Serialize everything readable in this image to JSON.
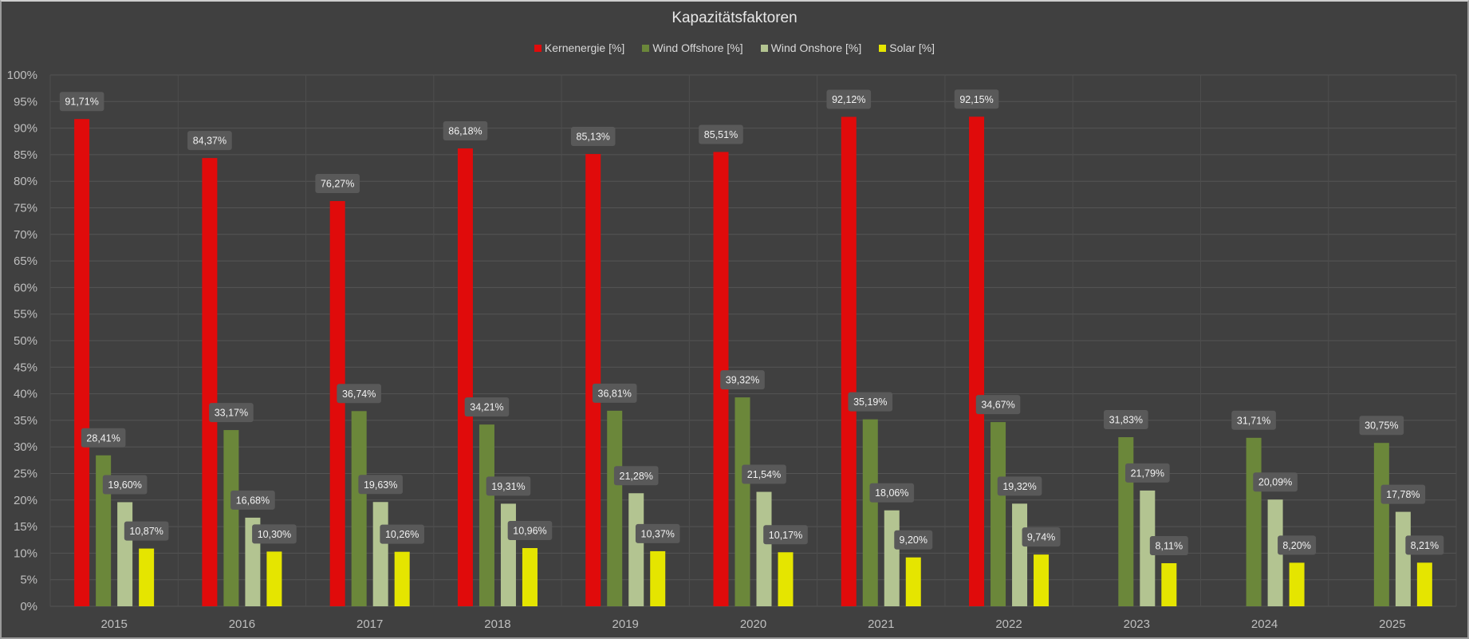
{
  "chart_data": {
    "type": "bar",
    "title": "Kapazitätsfaktoren",
    "xlabel": "",
    "ylabel": "",
    "ylim": [
      0,
      100
    ],
    "ytick_step": 5,
    "yticks": [
      "0%",
      "5%",
      "10%",
      "15%",
      "20%",
      "25%",
      "30%",
      "35%",
      "40%",
      "45%",
      "50%",
      "55%",
      "60%",
      "65%",
      "70%",
      "75%",
      "80%",
      "85%",
      "90%",
      "95%",
      "100%"
    ],
    "grid": true,
    "legend_position": "top",
    "categories": [
      "2015",
      "2016",
      "2017",
      "2018",
      "2019",
      "2020",
      "2021",
      "2022",
      "2023",
      "2024",
      "2025"
    ],
    "series": [
      {
        "name": "Kernenergie [%]",
        "color": "#e00b0b",
        "values": [
          91.71,
          84.37,
          76.27,
          86.18,
          85.13,
          85.51,
          92.12,
          92.15,
          null,
          null,
          null
        ],
        "labels": [
          "91,71%",
          "84,37%",
          "76,27%",
          "86,18%",
          "85,13%",
          "85,51%",
          "92,12%",
          "92,15%",
          null,
          null,
          null
        ]
      },
      {
        "name": "Wind Offshore [%]",
        "color": "#6b873a",
        "values": [
          28.41,
          33.17,
          36.74,
          34.21,
          36.81,
          39.32,
          35.19,
          34.67,
          31.83,
          31.71,
          30.75
        ],
        "labels": [
          "28,41%",
          "33,17%",
          "36,74%",
          "34,21%",
          "36,81%",
          "39,32%",
          "35,19%",
          "34,67%",
          "31,83%",
          "31,71%",
          "30,75%"
        ]
      },
      {
        "name": "Wind Onshore [%]",
        "color": "#b3c491",
        "values": [
          19.6,
          16.68,
          19.63,
          19.31,
          21.28,
          21.54,
          18.06,
          19.32,
          21.79,
          20.09,
          17.78
        ],
        "labels": [
          "19,60%",
          "16,68%",
          "19,63%",
          "19,31%",
          "21,28%",
          "21,54%",
          "18,06%",
          "19,32%",
          "21,79%",
          "20,09%",
          "17,78%"
        ]
      },
      {
        "name": "Solar [%]",
        "color": "#e5e500",
        "values": [
          10.87,
          10.3,
          10.26,
          10.96,
          10.37,
          10.17,
          9.2,
          9.74,
          8.11,
          8.2,
          8.21
        ],
        "labels": [
          "10,87%",
          "10,30%",
          "10,26%",
          "10,96%",
          "10,37%",
          "10,17%",
          "9,20%",
          "9,74%",
          "8,11%",
          "8,20%",
          "8,21%"
        ]
      }
    ]
  }
}
